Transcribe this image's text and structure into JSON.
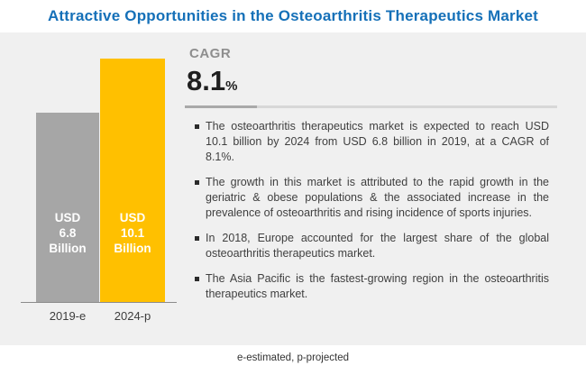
{
  "title": "Attractive Opportunities in the Osteoarthritis Therapeutics Market",
  "cagr": {
    "label": "CAGR",
    "value": "8.1",
    "unit": "%"
  },
  "chart_data": {
    "type": "bar",
    "categories": [
      "2019-e",
      "2024-p"
    ],
    "values": [
      6.8,
      10.1
    ],
    "unit": "USD Billion",
    "bar_colors": [
      "#a6a6a6",
      "#ffc000"
    ],
    "bar_labels": [
      [
        "USD",
        "6.8",
        "Billion"
      ],
      [
        "USD",
        "10.1",
        "Billion"
      ]
    ],
    "legend": "none",
    "grid": false
  },
  "bullets": [
    "The osteoarthritis therapeutics market is expected to reach USD 10.1 billion by 2024 from USD 6.8 billion in 2019, at a CAGR of 8.1%.",
    "The growth in this market is attributed to the rapid growth in the geriatric & obese populations & the associated increase in the prevalence of osteoarthritis and rising incidence of sports injuries.",
    "In 2018, Europe accounted for the largest share of the global osteoarthritis therapeutics market.",
    "The Asia Pacific is the fastest-growing region in the osteoarthritis therapeutics market."
  ],
  "footnote": "e-estimated, p-projected",
  "colors": {
    "title_blue": "#1570b8",
    "bar_gray": "#a6a6a6",
    "bar_yellow": "#ffc000",
    "panel_bg": "#f0f0f0",
    "text_dark": "#3f3f3f"
  }
}
